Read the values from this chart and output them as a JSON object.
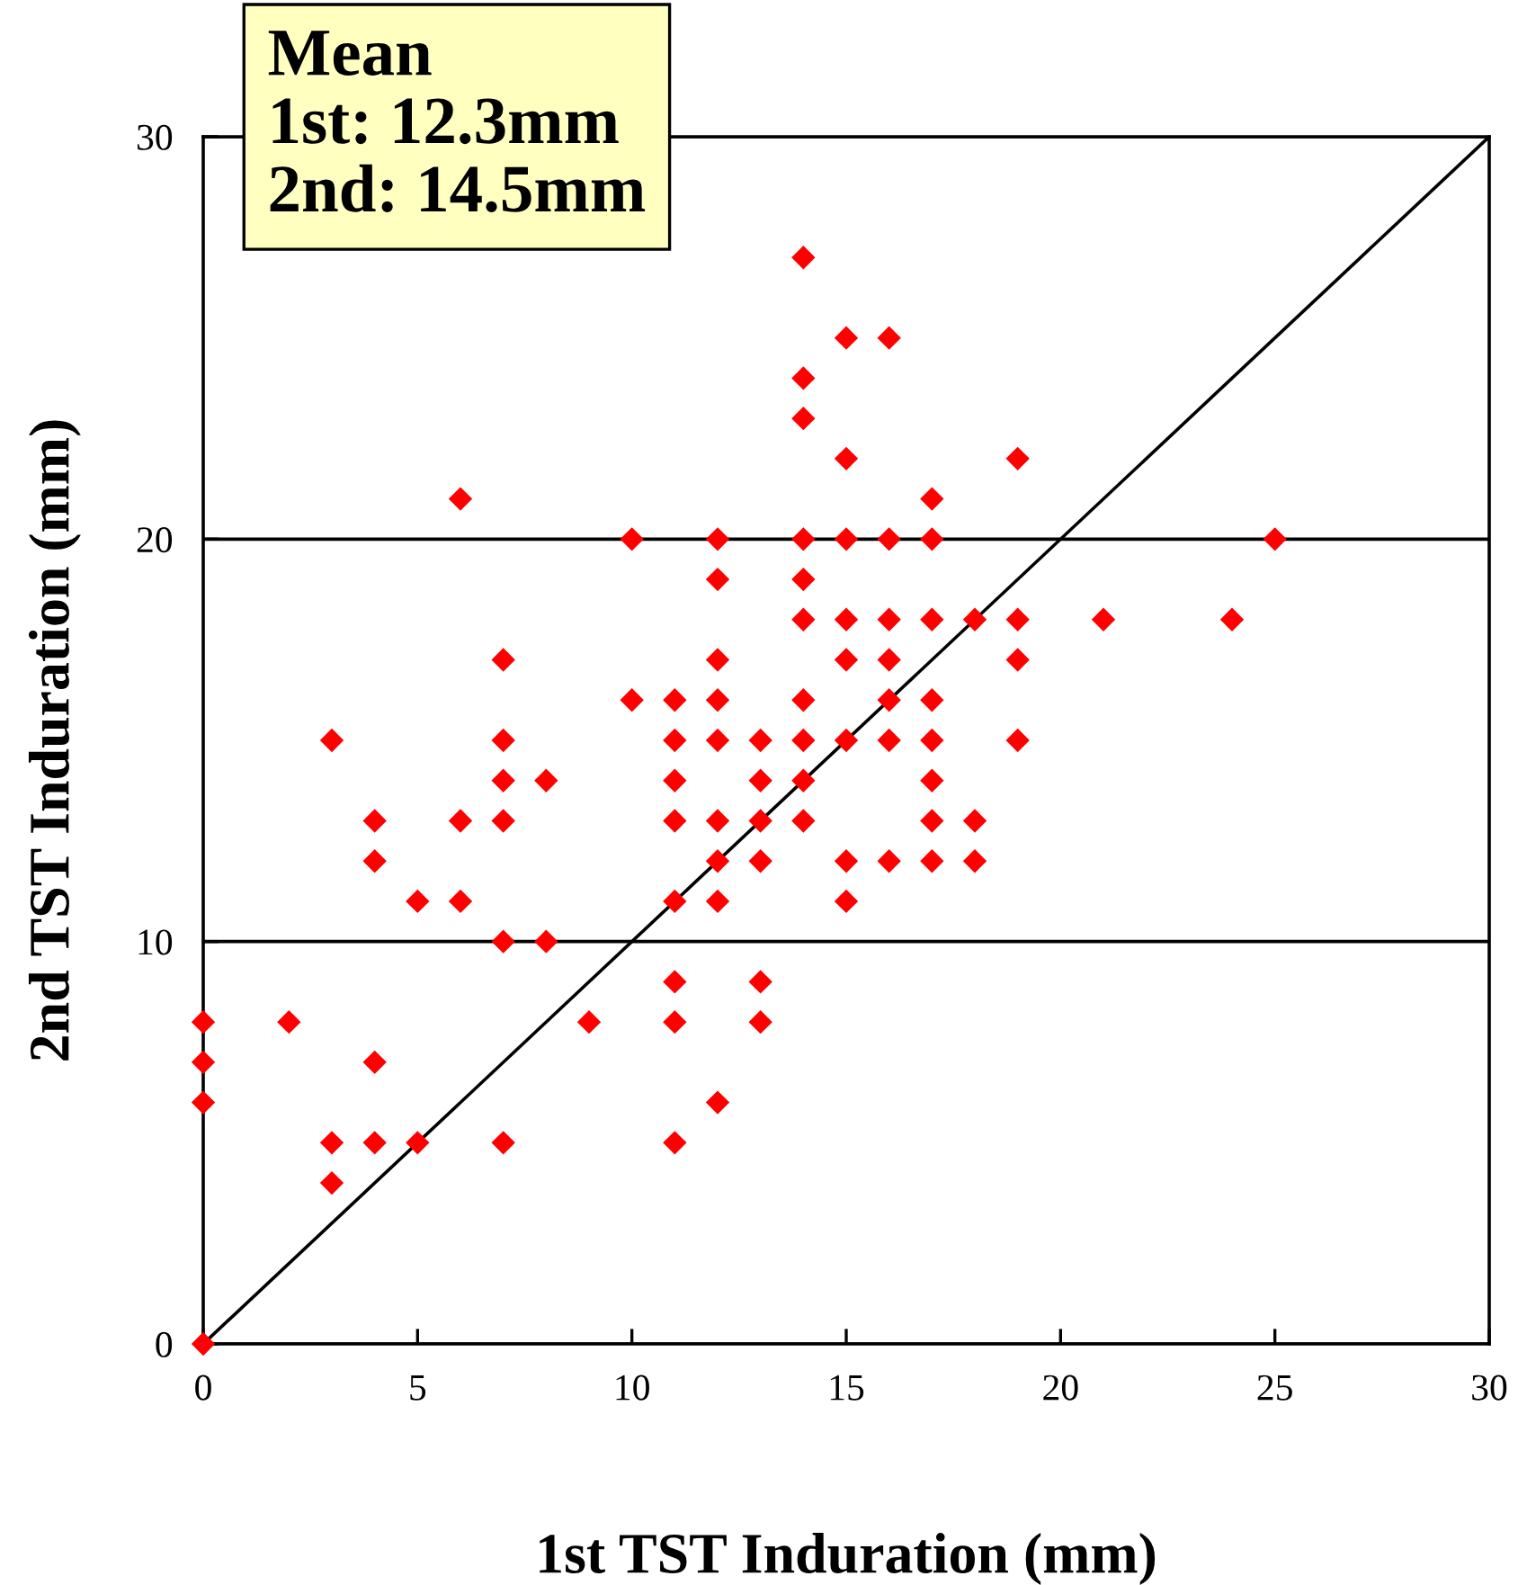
{
  "chart_data": {
    "type": "scatter",
    "xlabel": "1st TST Induration (mm)",
    "ylabel": "2nd TST Induration (mm)",
    "annotations": [
      "Mean\n1st: 12.3mm\n2nd: 14.5mm"
    ],
    "xlim": [
      0,
      30
    ],
    "ylim": [
      0,
      30
    ],
    "xticks": [
      0,
      5,
      10,
      15,
      20,
      25,
      30
    ],
    "yticks": [
      0,
      10,
      20,
      30
    ],
    "grid": "y",
    "marker": "diamond",
    "series": [
      {
        "color": "#ff0000",
        "x": [
          0,
          0,
          0,
          0,
          2,
          3,
          3,
          3,
          4,
          4,
          4,
          4,
          5,
          5,
          6,
          6,
          6,
          7,
          7,
          7,
          7,
          7,
          7,
          8,
          8,
          9,
          10,
          10,
          11,
          11,
          11,
          11,
          11,
          11,
          11,
          11,
          12,
          12,
          12,
          12,
          12,
          12,
          12,
          12,
          12,
          13,
          13,
          13,
          13,
          13,
          13,
          14,
          14,
          14,
          14,
          14,
          14,
          14,
          14,
          14,
          14,
          15,
          15,
          15,
          15,
          15,
          15,
          15,
          15,
          16,
          16,
          16,
          16,
          16,
          16,
          16,
          17,
          17,
          17,
          17,
          17,
          17,
          17,
          17,
          18,
          18,
          18,
          19,
          19,
          19,
          19,
          21,
          24,
          25
        ],
        "values": [
          8,
          7,
          6,
          0,
          8,
          15,
          5,
          4,
          13,
          12,
          7,
          5,
          11,
          5,
          21,
          13,
          11,
          17,
          15,
          14,
          13,
          10,
          5,
          14,
          10,
          8,
          20,
          16,
          16,
          15,
          14,
          13,
          11,
          9,
          8,
          5,
          20,
          19,
          17,
          16,
          15,
          13,
          12,
          11,
          6,
          15,
          14,
          13,
          12,
          9,
          8,
          27,
          24,
          23,
          20,
          19,
          18,
          16,
          15,
          14,
          13,
          25,
          22,
          20,
          18,
          17,
          15,
          12,
          11,
          25,
          20,
          18,
          17,
          16,
          15,
          12,
          21,
          20,
          18,
          16,
          15,
          14,
          13,
          12,
          18,
          13,
          12,
          22,
          18,
          17,
          15,
          18,
          18,
          20
        ]
      },
      {
        "type": "line",
        "color": "#000000",
        "x": [
          0,
          30
        ],
        "values": [
          0,
          30
        ],
        "marker": "none",
        "line_style": "solid"
      }
    ]
  }
}
